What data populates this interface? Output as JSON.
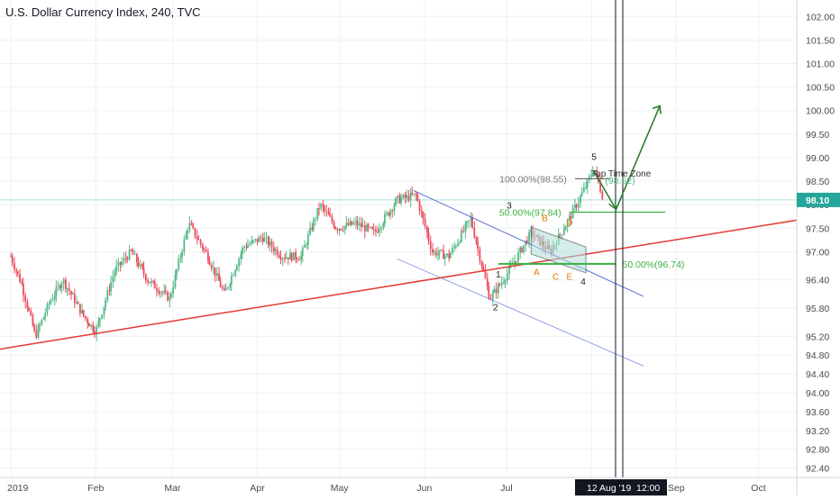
{
  "header": {
    "title": "U.S. Dollar Currency Index, 240, TVC"
  },
  "colors": {
    "up_candle": "#53b987",
    "down_candle": "#eb4d5c",
    "trendline": "#e53935",
    "channel": "#5b6bd6",
    "fib": "#3cb043",
    "projection": "#2e7d32",
    "axis_text": "#4a4a4a",
    "grid": "#eef0f3",
    "current_price_bg": "#26a69a",
    "time_marker_bg": "#131722",
    "pattern_fill": "#b2dfdb",
    "wave_label_orange": "#e07b00"
  },
  "chart_data": {
    "type": "candlestick",
    "symbol": "U.S. Dollar Currency Index",
    "interval": "240",
    "source": "TVC",
    "ylim": [
      92.2,
      102.35
    ],
    "y_ticks": [
      102.0,
      101.5,
      101.0,
      100.5,
      100.0,
      99.5,
      99.0,
      98.5,
      98.0,
      97.5,
      97.0,
      96.4,
      95.8,
      95.2,
      94.8,
      94.4,
      94.0,
      93.6,
      93.2,
      92.8,
      92.4
    ],
    "y_tick_labels": [
      "102.00",
      "101.50",
      "101.00",
      "100.50",
      "100.00",
      "99.50",
      "99.00",
      "98.50",
      "98.00",
      "97.50",
      "97.00",
      "96.40",
      "95.80",
      "95.20",
      "94.80",
      "94.40",
      "94.00",
      "93.60",
      "93.20",
      "92.80",
      "92.40"
    ],
    "x_ticks": [
      "2019",
      "Feb",
      "Mar",
      "Apr",
      "May",
      "Jun",
      "Jul",
      "Aug",
      "Sep",
      "Oct"
    ],
    "current_price": "98.10",
    "time_marker": {
      "date": "12 Aug '19",
      "time": "12:00"
    },
    "price_path": [
      [
        "2019-01-01",
        96.9
      ],
      [
        "2019-01-05",
        96.3
      ],
      [
        "2019-01-10",
        95.2
      ],
      [
        "2019-01-15",
        95.9
      ],
      [
        "2019-01-20",
        96.4
      ],
      [
        "2019-01-28",
        95.6
      ],
      [
        "2019-02-01",
        95.3
      ],
      [
        "2019-02-08",
        96.6
      ],
      [
        "2019-02-14",
        97.0
      ],
      [
        "2019-02-20",
        96.4
      ],
      [
        "2019-02-28",
        96.0
      ],
      [
        "2019-03-07",
        97.6
      ],
      [
        "2019-03-14",
        96.9
      ],
      [
        "2019-03-20",
        96.1
      ],
      [
        "2019-03-27",
        97.1
      ],
      [
        "2019-04-03",
        97.3
      ],
      [
        "2019-04-10",
        96.9
      ],
      [
        "2019-04-17",
        96.9
      ],
      [
        "2019-04-24",
        98.0
      ],
      [
        "2019-04-30",
        97.5
      ],
      [
        "2019-05-07",
        97.6
      ],
      [
        "2019-05-14",
        97.4
      ],
      [
        "2019-05-22",
        98.1
      ],
      [
        "2019-05-29",
        98.2
      ],
      [
        "2019-06-04",
        97.0
      ],
      [
        "2019-06-10",
        96.9
      ],
      [
        "2019-06-18",
        97.7
      ],
      [
        "2019-06-25",
        96.0
      ],
      [
        "2019-07-01",
        96.5
      ],
      [
        "2019-07-10",
        97.4
      ],
      [
        "2019-07-17",
        97.0
      ],
      [
        "2019-07-24",
        97.7
      ],
      [
        "2019-07-31",
        98.5
      ],
      [
        "2019-08-02",
        98.8
      ],
      [
        "2019-08-05",
        98.2
      ]
    ],
    "annotations": {
      "fib_levels": [
        {
          "label": "100.00%(98.55)",
          "value": 98.55
        },
        {
          "label": "50.00%(97.84)",
          "value": 97.84
        },
        {
          "label": "50.00%(96.74)",
          "value": 96.74
        },
        {
          "label": "(98.52)",
          "value": 98.52
        }
      ],
      "top_time_zone_label": "Top Time Zone",
      "waves": [
        "1",
        "2",
        "3",
        "4",
        "5"
      ],
      "triangle_waves": [
        "A",
        "B",
        "C",
        "D",
        "E"
      ],
      "projection": {
        "from": 97.9,
        "to": 100.1
      }
    }
  }
}
